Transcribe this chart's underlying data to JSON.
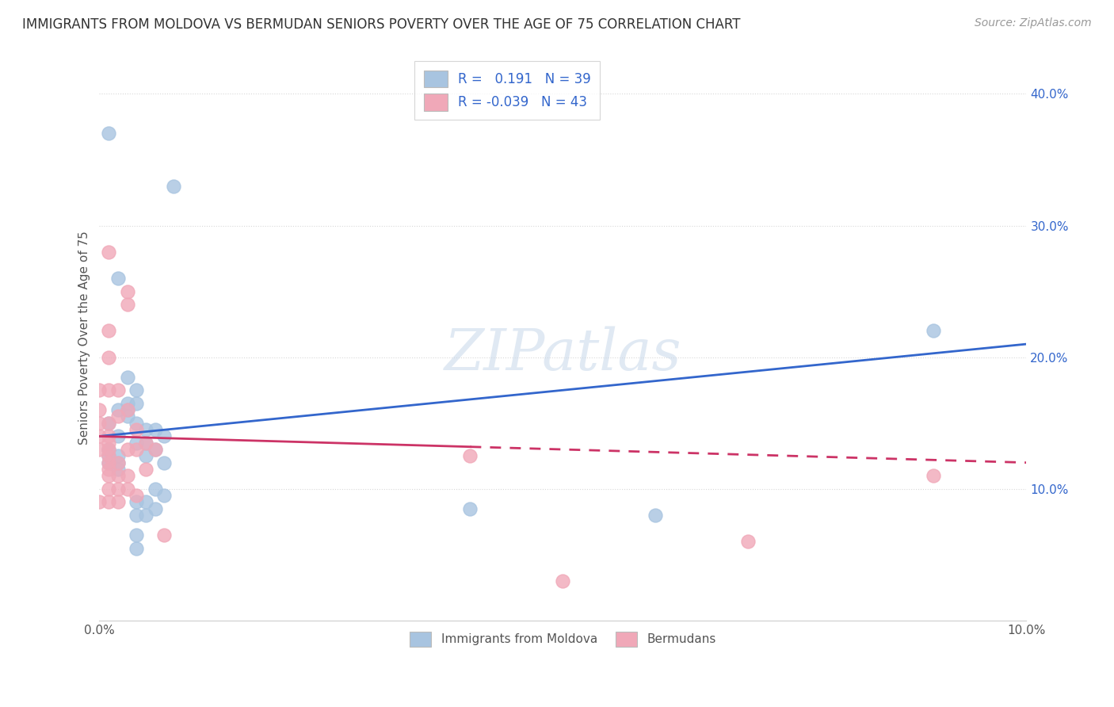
{
  "title": "IMMIGRANTS FROM MOLDOVA VS BERMUDAN SENIORS POVERTY OVER THE AGE OF 75 CORRELATION CHART",
  "source": "Source: ZipAtlas.com",
  "ylabel": "Seniors Poverty Over the Age of 75",
  "xmin": 0.0,
  "xmax": 0.1,
  "ymin": 0.0,
  "ymax": 0.43,
  "yticks": [
    0.1,
    0.2,
    0.3,
    0.4
  ],
  "ytick_labels": [
    "10.0%",
    "20.0%",
    "30.0%",
    "40.0%"
  ],
  "moldova_color": "#a8c4e0",
  "bermuda_color": "#f0a8b8",
  "line1_color": "#3366cc",
  "line2_color": "#cc3366",
  "background_color": "#ffffff",
  "grid_color": "#d8d8d8",
  "watermark_text": "ZIPatlas",
  "line1_y0": 0.14,
  "line1_y1": 0.21,
  "line2_y0": 0.14,
  "line2_y1": 0.12,
  "moldova_points": [
    [
      0.001,
      0.37
    ],
    [
      0.001,
      0.12
    ],
    [
      0.001,
      0.125
    ],
    [
      0.001,
      0.13
    ],
    [
      0.001,
      0.15
    ],
    [
      0.002,
      0.115
    ],
    [
      0.002,
      0.12
    ],
    [
      0.002,
      0.125
    ],
    [
      0.002,
      0.14
    ],
    [
      0.002,
      0.16
    ],
    [
      0.002,
      0.26
    ],
    [
      0.003,
      0.155
    ],
    [
      0.003,
      0.16
    ],
    [
      0.003,
      0.165
    ],
    [
      0.003,
      0.185
    ],
    [
      0.004,
      0.135
    ],
    [
      0.004,
      0.15
    ],
    [
      0.004,
      0.165
    ],
    [
      0.004,
      0.175
    ],
    [
      0.004,
      0.09
    ],
    [
      0.004,
      0.08
    ],
    [
      0.004,
      0.065
    ],
    [
      0.004,
      0.055
    ],
    [
      0.005,
      0.135
    ],
    [
      0.005,
      0.145
    ],
    [
      0.005,
      0.125
    ],
    [
      0.005,
      0.09
    ],
    [
      0.005,
      0.08
    ],
    [
      0.006,
      0.13
    ],
    [
      0.006,
      0.145
    ],
    [
      0.006,
      0.1
    ],
    [
      0.006,
      0.085
    ],
    [
      0.007,
      0.14
    ],
    [
      0.007,
      0.12
    ],
    [
      0.007,
      0.095
    ],
    [
      0.008,
      0.33
    ],
    [
      0.04,
      0.085
    ],
    [
      0.06,
      0.08
    ],
    [
      0.09,
      0.22
    ]
  ],
  "bermuda_points": [
    [
      0.0,
      0.13
    ],
    [
      0.0,
      0.14
    ],
    [
      0.0,
      0.15
    ],
    [
      0.0,
      0.16
    ],
    [
      0.0,
      0.175
    ],
    [
      0.001,
      0.09
    ],
    [
      0.001,
      0.1
    ],
    [
      0.001,
      0.11
    ],
    [
      0.001,
      0.115
    ],
    [
      0.001,
      0.12
    ],
    [
      0.001,
      0.125
    ],
    [
      0.001,
      0.13
    ],
    [
      0.001,
      0.135
    ],
    [
      0.001,
      0.14
    ],
    [
      0.001,
      0.15
    ],
    [
      0.001,
      0.175
    ],
    [
      0.001,
      0.2
    ],
    [
      0.001,
      0.22
    ],
    [
      0.001,
      0.28
    ],
    [
      0.002,
      0.09
    ],
    [
      0.002,
      0.1
    ],
    [
      0.002,
      0.11
    ],
    [
      0.002,
      0.12
    ],
    [
      0.002,
      0.155
    ],
    [
      0.002,
      0.175
    ],
    [
      0.003,
      0.1
    ],
    [
      0.003,
      0.11
    ],
    [
      0.003,
      0.13
    ],
    [
      0.003,
      0.16
    ],
    [
      0.003,
      0.24
    ],
    [
      0.003,
      0.25
    ],
    [
      0.004,
      0.095
    ],
    [
      0.004,
      0.13
    ],
    [
      0.004,
      0.145
    ],
    [
      0.005,
      0.115
    ],
    [
      0.005,
      0.135
    ],
    [
      0.006,
      0.13
    ],
    [
      0.007,
      0.065
    ],
    [
      0.04,
      0.125
    ],
    [
      0.05,
      0.03
    ],
    [
      0.07,
      0.06
    ],
    [
      0.09,
      0.11
    ],
    [
      0.0,
      0.09
    ]
  ]
}
